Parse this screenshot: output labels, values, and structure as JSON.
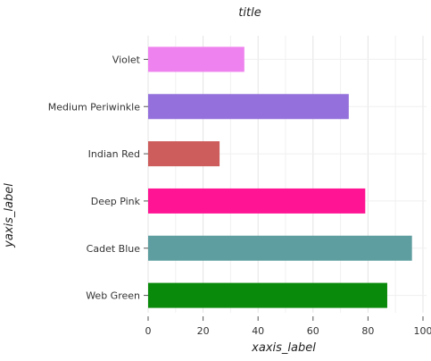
{
  "chart_data": {
    "type": "bar",
    "orientation": "horizontal",
    "title": "title",
    "xlabel": "xaxis_label",
    "ylabel": "yaxis_label",
    "categories": [
      "Web Green",
      "Cadet Blue",
      "Deep Pink",
      "Indian Red",
      "Medium Periwinkle",
      "Violet"
    ],
    "values": [
      87,
      96,
      79,
      26,
      73,
      35
    ],
    "colors": [
      "#0a8a0a",
      "#5f9ea0",
      "#ff1493",
      "#cd5c5c",
      "#9370db",
      "#ee82ee"
    ],
    "xlim": [
      0,
      100
    ],
    "xticks": [
      0,
      20,
      40,
      60,
      80,
      100
    ],
    "xtick_labels": [
      "0",
      "20",
      "40",
      "60",
      "80",
      "100"
    ],
    "grid": true
  }
}
